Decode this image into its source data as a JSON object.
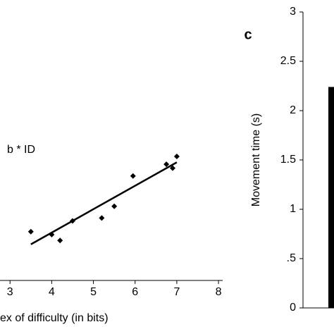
{
  "chart_data": [
    {
      "type": "scatter",
      "annotation": "b * ID",
      "xlabel": "ex of difficulty (in bits)",
      "x": [
        3.5,
        4.0,
        4.2,
        4.5,
        5.2,
        5.5,
        5.95,
        6.75,
        6.9,
        7.0
      ],
      "values": [
        0.75,
        0.72,
        0.66,
        0.86,
        0.89,
        1.01,
        1.32,
        1.44,
        1.4,
        1.52
      ],
      "color": "#000000",
      "fit": {
        "x": [
          3.5,
          7.0
        ],
        "values": [
          0.62,
          1.46
        ]
      },
      "xlim": [
        2.76,
        8.1
      ],
      "xticks": [
        3,
        4,
        5,
        6,
        7,
        8
      ],
      "ylim": [
        0.25,
        3
      ]
    },
    {
      "type": "bar",
      "label": "c",
      "ylabel": "Movement time (s)",
      "categories": [
        null
      ],
      "values": [
        2.24
      ],
      "color": "#000000",
      "ylim": [
        0,
        3
      ],
      "yticks": [
        0,
        {
          "value": 0.5,
          "label": ".5"
        },
        1,
        1.5,
        2,
        2.5,
        3
      ]
    }
  ]
}
